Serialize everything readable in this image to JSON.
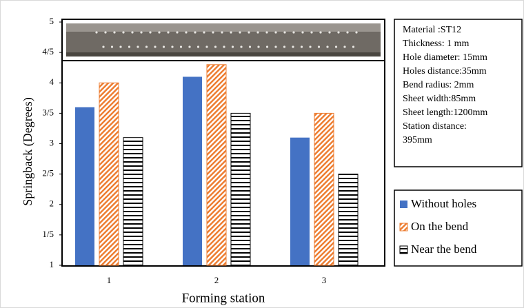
{
  "chart_data": {
    "type": "bar",
    "x_label": "Forming station",
    "y_label": "Springback (Degrees)",
    "categories": [
      "1",
      "2",
      "3"
    ],
    "series": [
      {
        "name": "Without holes",
        "color": "#4472c4",
        "hatch": "none",
        "values": [
          3.6,
          4.1,
          3.1
        ]
      },
      {
        "name": "On the bend",
        "color": "#ed7d31",
        "hatch": "diagonal",
        "values": [
          4.0,
          4.3,
          3.5
        ]
      },
      {
        "name": "Near the bend",
        "color": "#000000",
        "hatch": "horizontal",
        "values": [
          3.1,
          3.5,
          2.5
        ]
      }
    ],
    "ylim": [
      1,
      5
    ],
    "yticks": [
      1,
      {
        "value": 1.5,
        "label": "1/5"
      },
      2,
      {
        "value": 2.5,
        "label": "2/5"
      },
      3,
      {
        "value": 3.5,
        "label": "3/5"
      },
      4,
      {
        "value": 4.5,
        "label": "4/5"
      },
      5
    ],
    "annotations": [
      "Material :ST12",
      "Thickness: 1 mm",
      "Hole diameter: 15mm",
      "Holes distance:35mm",
      "Bend radius: 2mm",
      "Sheet width:85mm",
      "Sheet length:1200mm",
      "Station distance:",
      "395mm"
    ]
  }
}
